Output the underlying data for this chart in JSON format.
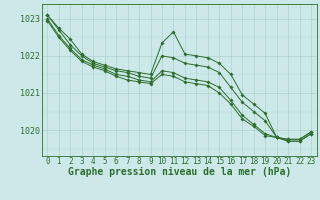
{
  "bg_color": "#cce8e8",
  "grid_color_major": "#aacccc",
  "grid_color_minor": "#bbdddd",
  "line_color": "#2d6e2d",
  "xlabel": "Graphe pression niveau de la mer (hPa)",
  "xlabel_fontsize": 7,
  "tick_fontsize": 5.5,
  "ytick_fontsize": 6,
  "ylim": [
    1019.3,
    1023.4
  ],
  "yticks": [
    1020,
    1021,
    1022,
    1023
  ],
  "xlim": [
    -0.5,
    23.5
  ],
  "xticks": [
    0,
    1,
    2,
    3,
    4,
    5,
    6,
    7,
    8,
    9,
    10,
    11,
    12,
    13,
    14,
    15,
    16,
    17,
    18,
    19,
    20,
    21,
    22,
    23
  ],
  "series": [
    {
      "x": [
        0,
        1,
        2,
        3,
        4,
        5,
        6,
        7,
        8,
        9,
        10,
        11,
        12,
        13,
        14,
        15,
        16,
        17,
        18,
        19,
        20,
        21,
        22,
        23
      ],
      "y": [
        1023.1,
        1022.75,
        1022.45,
        1022.05,
        1021.85,
        1021.75,
        1021.65,
        1021.6,
        1021.55,
        1021.5,
        1022.35,
        1022.65,
        1022.05,
        1022.0,
        1021.95,
        1021.8,
        1021.5,
        1020.95,
        1020.7,
        1020.45,
        1019.8,
        1019.75,
        1019.75,
        1019.95
      ]
    },
    {
      "x": [
        0,
        1,
        2,
        3,
        4,
        5,
        6,
        7,
        8,
        9,
        10,
        11,
        12,
        13,
        14,
        15,
        16,
        17,
        18,
        19,
        20,
        21,
        22,
        23
      ],
      "y": [
        1023.1,
        1022.7,
        1022.3,
        1022.0,
        1021.8,
        1021.7,
        1021.6,
        1021.55,
        1021.45,
        1021.4,
        1022.0,
        1021.95,
        1021.8,
        1021.75,
        1021.7,
        1021.55,
        1021.15,
        1020.75,
        1020.5,
        1020.25,
        1019.8,
        1019.75,
        1019.75,
        1019.95
      ]
    },
    {
      "x": [
        0,
        1,
        2,
        3,
        4,
        5,
        6,
        7,
        8,
        9,
        10,
        11,
        12,
        13,
        14,
        15,
        16,
        17,
        18,
        19,
        20,
        21,
        22,
        23
      ],
      "y": [
        1023.0,
        1022.55,
        1022.2,
        1021.9,
        1021.75,
        1021.65,
        1021.5,
        1021.45,
        1021.35,
        1021.3,
        1021.6,
        1021.55,
        1021.4,
        1021.35,
        1021.3,
        1021.15,
        1020.8,
        1020.4,
        1020.15,
        1019.9,
        1019.8,
        1019.7,
        1019.7,
        1019.9
      ]
    },
    {
      "x": [
        0,
        1,
        2,
        3,
        4,
        5,
        6,
        7,
        8,
        9,
        10,
        11,
        12,
        13,
        14,
        15,
        16,
        17,
        18,
        19,
        20,
        21,
        22,
        23
      ],
      "y": [
        1022.95,
        1022.5,
        1022.15,
        1021.85,
        1021.7,
        1021.6,
        1021.45,
        1021.35,
        1021.3,
        1021.25,
        1021.5,
        1021.45,
        1021.3,
        1021.25,
        1021.2,
        1021.0,
        1020.7,
        1020.3,
        1020.1,
        1019.85,
        1019.8,
        1019.7,
        1019.7,
        1019.9
      ]
    }
  ]
}
